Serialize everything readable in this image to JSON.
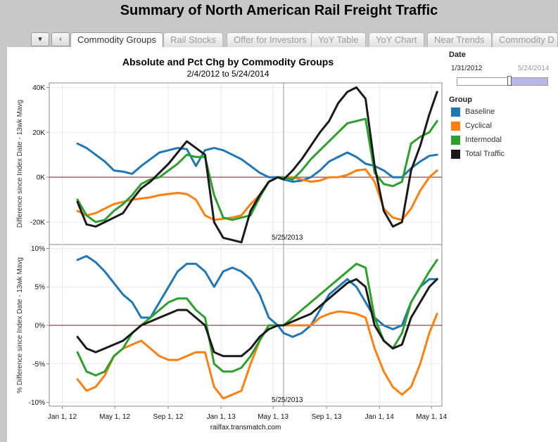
{
  "page": {
    "title": "Summary of North American Rail Freight Traffic"
  },
  "tabs": {
    "nav_down": "▾",
    "nav_back": "‹",
    "items": [
      {
        "label": "Commodity Groups"
      },
      {
        "label": "Rail Stocks"
      },
      {
        "label": "Offer for Investors"
      },
      {
        "label": "YoY Table"
      },
      {
        "label": "YoY Chart"
      },
      {
        "label": "Near Trends"
      },
      {
        "label": "Commodity D"
      }
    ]
  },
  "filter": {
    "title": "Date",
    "start": "1/31/2012",
    "end": "5/24/2014",
    "handle_fraction": 0.58
  },
  "legend": {
    "title": "Group",
    "items": [
      {
        "label": "Baseline",
        "color": "#1f77b4"
      },
      {
        "label": "Cyclical",
        "color": "#ff7f0e"
      },
      {
        "label": "Intermodal",
        "color": "#2ca02c"
      },
      {
        "label": "Total Traffic",
        "color": "#1a1a1a"
      }
    ]
  },
  "chart_data": {
    "type": "line",
    "title": "Absolute and Pct Chg by Commodity Groups",
    "subtitle": "2/4/2012 to 5/24/2014",
    "source": "railfax.transmatch.com",
    "x_domain": [
      -30,
      875
    ],
    "x_ticks": [
      {
        "day": 0,
        "label": "Jan 1, 12"
      },
      {
        "day": 121,
        "label": "May 1, 12"
      },
      {
        "day": 244,
        "label": "Sep 1, 12"
      },
      {
        "day": 366,
        "label": "Jan 1, 13"
      },
      {
        "day": 486,
        "label": "May 1, 13"
      },
      {
        "day": 609,
        "label": "Sep 1, 13"
      },
      {
        "day": 731,
        "label": "Jan 1, 14"
      },
      {
        "day": 851,
        "label": "May 1, 14"
      }
    ],
    "reference_line": {
      "day": 510,
      "label": "5/25/2013"
    },
    "x": [
      35,
      56,
      77,
      98,
      119,
      140,
      161,
      182,
      203,
      224,
      245,
      266,
      287,
      308,
      329,
      350,
      371,
      392,
      413,
      434,
      455,
      476,
      497,
      510,
      531,
      552,
      573,
      594,
      615,
      636,
      657,
      678,
      699,
      720,
      741,
      762,
      783,
      804,
      825,
      846,
      864
    ],
    "panels": [
      {
        "ylabel": "Difference since Index Date - 13wk Mavg",
        "ylim": [
          -30000,
          42000
        ],
        "y_ticks": [
          {
            "value": -20000,
            "label": "-20K"
          },
          {
            "value": 0,
            "label": "0K"
          },
          {
            "value": 20000,
            "label": "20K"
          },
          {
            "value": 40000,
            "label": "40K"
          }
        ],
        "series": [
          {
            "name": "Baseline",
            "values": [
              15000,
              13000,
              10000,
              7000,
              3000,
              2500,
              1500,
              5000,
              8000,
              11000,
              12000,
              13000,
              12500,
              5000,
              12000,
              13000,
              12000,
              10000,
              8000,
              5000,
              2000,
              0,
              0,
              -1000,
              -2000,
              -1500,
              0,
              3000,
              7000,
              9000,
              11000,
              9000,
              6000,
              5000,
              3000,
              0,
              0,
              4000,
              7000,
              9500,
              10000
            ]
          },
          {
            "name": "Cyclical",
            "values": [
              -15000,
              -17000,
              -16000,
              -14000,
              -12000,
              -11000,
              -10000,
              -9500,
              -9000,
              -8000,
              -7500,
              -7000,
              -7500,
              -10000,
              -17000,
              -19000,
              -18500,
              -18000,
              -17000,
              -12000,
              -8000,
              -2000,
              0,
              0,
              0,
              -1000,
              -2000,
              -1500,
              0,
              0,
              1000,
              3000,
              3500,
              -2000,
              -14000,
              -18000,
              -19000,
              -14000,
              -6000,
              0,
              3000
            ]
          },
          {
            "name": "Intermodal",
            "values": [
              -10000,
              -17000,
              -20000,
              -19000,
              -15000,
              -12000,
              -8000,
              -3000,
              -1000,
              0,
              3000,
              6000,
              10000,
              9000,
              9000,
              -8000,
              -18000,
              -19000,
              -18000,
              -17000,
              -9000,
              -2000,
              0,
              0,
              -1000,
              3000,
              8000,
              12000,
              16000,
              20000,
              24000,
              25000,
              26000,
              2000,
              -3000,
              -4000,
              -2000,
              15000,
              18000,
              20000,
              25000
            ]
          },
          {
            "name": "Total Traffic",
            "values": [
              -11000,
              -21000,
              -22000,
              -20000,
              -18000,
              -16000,
              -10000,
              -5000,
              -2000,
              2000,
              6000,
              11000,
              16000,
              13000,
              10000,
              -20000,
              -27000,
              -28000,
              -29000,
              -15000,
              -8000,
              -2000,
              0,
              -1000,
              3000,
              8000,
              14000,
              20000,
              25000,
              33000,
              38000,
              40000,
              35000,
              5000,
              -15000,
              -22000,
              -20000,
              3000,
              14000,
              28000,
              38000
            ]
          }
        ]
      },
      {
        "ylabel": "% Difference since Index Date - 13wk Mavg",
        "ylim": [
          -10.5,
          10.5
        ],
        "y_ticks": [
          {
            "value": -10,
            "label": "-10%"
          },
          {
            "value": -5,
            "label": "-5%"
          },
          {
            "value": 0,
            "label": "0%"
          },
          {
            "value": 5,
            "label": "5%"
          },
          {
            "value": 10,
            "label": "10%"
          }
        ],
        "series": [
          {
            "name": "Baseline",
            "values": [
              8.5,
              9,
              8.2,
              7,
              5.5,
              4,
              3,
              1,
              1,
              3,
              5,
              7,
              8,
              8,
              7,
              5,
              7,
              7.5,
              7,
              6,
              4,
              1,
              0,
              -1,
              -1.5,
              -1,
              0,
              2,
              4,
              5,
              6,
              5,
              3,
              1,
              0,
              -0.5,
              0,
              3,
              5,
              6,
              6
            ]
          },
          {
            "name": "Cyclical",
            "values": [
              -7,
              -8.5,
              -8,
              -6.5,
              -4,
              -3,
              -2.5,
              -2,
              -3,
              -4,
              -4.5,
              -4.5,
              -4,
              -3.5,
              -3.5,
              -8,
              -9.5,
              -9,
              -8.5,
              -5,
              -2,
              0,
              0,
              0,
              0,
              0,
              0,
              1,
              1.5,
              1.8,
              1.7,
              1.5,
              1,
              -3,
              -6,
              -8,
              -9,
              -8,
              -5,
              -1,
              1.5
            ]
          },
          {
            "name": "Intermodal",
            "values": [
              -3.5,
              -6,
              -6.5,
              -6,
              -4,
              -3,
              -1,
              0,
              1,
              2,
              3,
              3.5,
              3.5,
              2,
              1,
              -5,
              -6,
              -6,
              -5.5,
              -4,
              -2,
              0,
              0,
              0,
              1,
              2,
              3,
              4,
              5,
              6,
              7,
              8,
              7.5,
              1,
              -2,
              -3,
              -1,
              3,
              5,
              7,
              8.5
            ]
          },
          {
            "name": "Total Traffic",
            "values": [
              -1.5,
              -3,
              -3.5,
              -3,
              -2.5,
              -2,
              -1,
              0,
              0.5,
              1,
              1.5,
              2,
              2,
              1,
              0,
              -3.5,
              -4,
              -4,
              -4,
              -3,
              -1.5,
              -0.5,
              0,
              0,
              0.5,
              1,
              1.5,
              2.5,
              3.5,
              4.5,
              5.5,
              6,
              5,
              0,
              -2,
              -3,
              -2.5,
              1,
              3,
              5,
              6
            ]
          }
        ]
      }
    ]
  }
}
